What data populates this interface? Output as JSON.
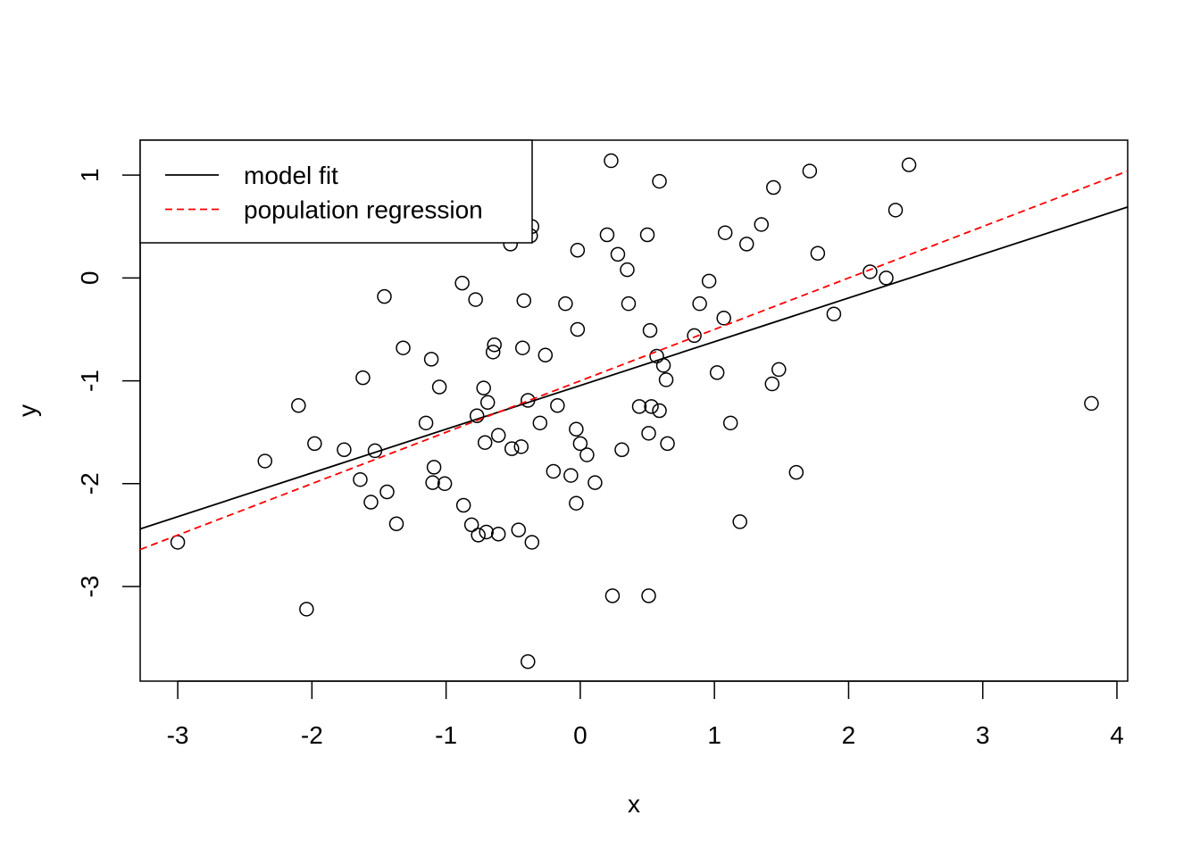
{
  "chart_data": {
    "type": "scatter",
    "xlabel": "x",
    "ylabel": "y",
    "xlim": [
      -3.28,
      4.08
    ],
    "ylim": [
      -3.92,
      1.34
    ],
    "xticks": [
      -3,
      -2,
      -1,
      0,
      1,
      2,
      3,
      4
    ],
    "yticks": [
      -3,
      -2,
      -1,
      0,
      1
    ],
    "xtick_labels": [
      "-3",
      "-2",
      "-1",
      "0",
      "1",
      "2",
      "3",
      "4"
    ],
    "ytick_labels": [
      "-3",
      "-2",
      "-1",
      "0",
      "1"
    ],
    "grid": false,
    "legend": {
      "position": "top-left",
      "entries": [
        {
          "label": "model fit",
          "color": "#000000",
          "style": "solid"
        },
        {
          "label": "population regression",
          "color": "#ff0000",
          "style": "dashed"
        }
      ]
    },
    "lines": [
      {
        "name": "model fit",
        "color": "#000000",
        "style": "solid",
        "x": [
          -3.28,
          4.08
        ],
        "y": [
          -2.44,
          0.69
        ]
      },
      {
        "name": "population regression",
        "color": "#ff0000",
        "style": "dashed",
        "x": [
          -3.28,
          4.08
        ],
        "y": [
          -2.64,
          1.04
        ]
      }
    ],
    "points": [
      [
        -3.0,
        -2.57
      ],
      [
        -2.35,
        -1.78
      ],
      [
        -2.1,
        -1.24
      ],
      [
        -2.04,
        -3.22
      ],
      [
        -1.98,
        -1.61
      ],
      [
        -1.76,
        -1.67
      ],
      [
        -1.64,
        -1.96
      ],
      [
        -1.62,
        -0.97
      ],
      [
        -1.56,
        -2.18
      ],
      [
        -1.53,
        -1.68
      ],
      [
        -1.46,
        -0.18
      ],
      [
        -1.44,
        -2.08
      ],
      [
        -1.37,
        -2.39
      ],
      [
        -1.32,
        -0.68
      ],
      [
        -1.15,
        -1.41
      ],
      [
        -1.11,
        -0.79
      ],
      [
        -1.1,
        -1.99
      ],
      [
        -1.09,
        -1.84
      ],
      [
        -1.05,
        -1.06
      ],
      [
        -1.01,
        -2.0
      ],
      [
        -0.88,
        -0.05
      ],
      [
        -0.87,
        -2.21
      ],
      [
        -0.81,
        -2.4
      ],
      [
        -0.78,
        -0.21
      ],
      [
        -0.77,
        -1.34
      ],
      [
        -0.76,
        -2.5
      ],
      [
        -0.72,
        -1.07
      ],
      [
        -0.71,
        -1.6
      ],
      [
        -0.7,
        -2.47
      ],
      [
        -0.69,
        -1.21
      ],
      [
        -0.65,
        -0.72
      ],
      [
        -0.64,
        -0.65
      ],
      [
        -0.61,
        -1.53
      ],
      [
        -0.61,
        -2.49
      ],
      [
        -0.52,
        0.33
      ],
      [
        -0.51,
        -1.66
      ],
      [
        -0.46,
        -2.45
      ],
      [
        -0.44,
        -1.64
      ],
      [
        -0.43,
        -0.68
      ],
      [
        -0.42,
        -0.22
      ],
      [
        -0.39,
        -3.73
      ],
      [
        -0.39,
        -1.19
      ],
      [
        -0.37,
        0.41
      ],
      [
        -0.36,
        -2.57
      ],
      [
        -0.36,
        0.5
      ],
      [
        -0.3,
        -1.41
      ],
      [
        -0.26,
        -0.75
      ],
      [
        -0.2,
        -1.88
      ],
      [
        -0.17,
        -1.24
      ],
      [
        -0.11,
        -0.25
      ],
      [
        -0.07,
        -1.92
      ],
      [
        -0.03,
        -1.47
      ],
      [
        -0.03,
        -2.19
      ],
      [
        -0.02,
        0.27
      ],
      [
        -0.02,
        -0.5
      ],
      [
        0.0,
        -1.61
      ],
      [
        0.05,
        -1.72
      ],
      [
        0.11,
        -1.99
      ],
      [
        0.2,
        0.42
      ],
      [
        0.23,
        1.14
      ],
      [
        0.24,
        -3.09
      ],
      [
        0.28,
        0.23
      ],
      [
        0.31,
        -1.67
      ],
      [
        0.35,
        0.08
      ],
      [
        0.36,
        -0.25
      ],
      [
        0.44,
        -1.25
      ],
      [
        0.5,
        0.42
      ],
      [
        0.51,
        -3.09
      ],
      [
        0.51,
        -1.51
      ],
      [
        0.52,
        -0.51
      ],
      [
        0.53,
        -1.25
      ],
      [
        0.57,
        -0.76
      ],
      [
        0.59,
        0.94
      ],
      [
        0.59,
        -1.29
      ],
      [
        0.62,
        -0.85
      ],
      [
        0.64,
        -0.99
      ],
      [
        0.65,
        -1.61
      ],
      [
        0.85,
        -0.56
      ],
      [
        0.89,
        -0.25
      ],
      [
        0.96,
        -0.03
      ],
      [
        1.02,
        -0.92
      ],
      [
        1.07,
        -0.39
      ],
      [
        1.08,
        0.44
      ],
      [
        1.12,
        -1.41
      ],
      [
        1.19,
        -2.37
      ],
      [
        1.24,
        0.33
      ],
      [
        1.35,
        0.52
      ],
      [
        1.43,
        -1.03
      ],
      [
        1.44,
        0.88
      ],
      [
        1.48,
        -0.89
      ],
      [
        1.61,
        -1.89
      ],
      [
        1.71,
        1.04
      ],
      [
        1.77,
        0.24
      ],
      [
        1.89,
        -0.35
      ],
      [
        2.16,
        0.06
      ],
      [
        2.28,
        0.0
      ],
      [
        2.35,
        0.66
      ],
      [
        2.45,
        1.1
      ],
      [
        3.81,
        -1.22
      ]
    ]
  }
}
